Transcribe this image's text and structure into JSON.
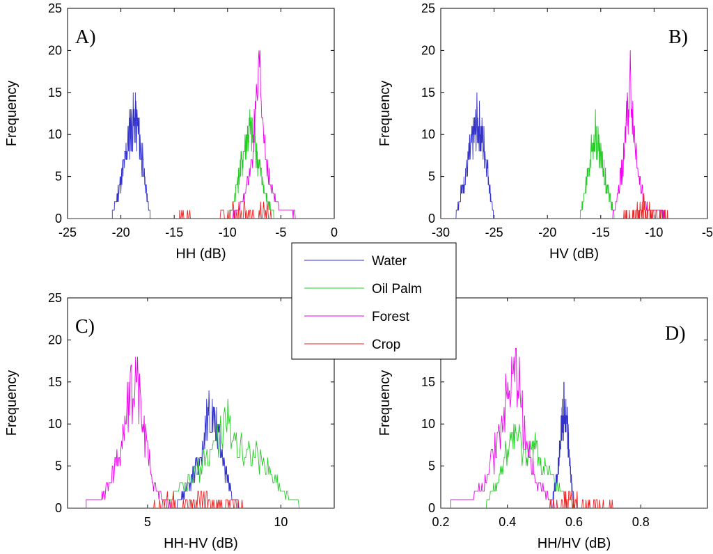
{
  "legend": [
    {
      "name": "Water",
      "color": "#3333cc"
    },
    {
      "name": "Oil Palm",
      "color": "#22cc22"
    },
    {
      "name": "Forest",
      "color": "#ee00ee"
    },
    {
      "name": "Crop",
      "color": "#ee2222"
    }
  ],
  "chart_data": [
    {
      "type": "line",
      "panel": "A)",
      "xlabel": "HH (dB)",
      "ylabel": "Frequency",
      "xlim": [
        -25,
        0
      ],
      "ylim": [
        0,
        25
      ],
      "xticks": [
        "-25",
        "-20",
        "-15",
        "-10",
        "-5",
        "0"
      ],
      "yticks": [
        "0",
        "5",
        "10",
        "15",
        "20",
        "25"
      ],
      "series": [
        {
          "name": "Water",
          "x": [
            -20.8,
            -20.4,
            -20.0,
            -19.6,
            -19.2,
            -18.8,
            -18.4,
            -18.0,
            -17.6,
            -17.2
          ],
          "y": [
            1,
            3,
            6,
            9,
            13,
            15,
            14,
            9,
            4,
            0
          ]
        },
        {
          "name": "Oil Palm",
          "x": [
            -10.0,
            -9.5,
            -9.0,
            -8.5,
            -8.0,
            -7.5,
            -7.0,
            -6.5,
            -6.0,
            -5.5
          ],
          "y": [
            0,
            2,
            6,
            10,
            14,
            12,
            8,
            4,
            2,
            0
          ]
        },
        {
          "name": "Forest",
          "x": [
            -10.0,
            -9.0,
            -8.5,
            -8.0,
            -7.5,
            -7.0,
            -6.5,
            -6.0,
            -5.0,
            -4.0,
            -3.0
          ],
          "y": [
            0,
            1,
            3,
            6,
            13,
            21,
            11,
            5,
            1,
            1,
            0
          ]
        },
        {
          "name": "Crop",
          "x": [
            -14.5,
            -12.0,
            -10.0,
            -9.0,
            -8.0,
            -7.0,
            -6.0,
            -5.0
          ],
          "y": [
            1,
            0,
            1,
            2,
            1,
            2,
            1,
            0
          ]
        }
      ]
    },
    {
      "type": "line",
      "panel": "B)",
      "xlabel": "HV (dB)",
      "ylabel": "Frequency",
      "xlim": [
        -30,
        -5
      ],
      "ylim": [
        0,
        25
      ],
      "xticks": [
        "-30",
        "-25",
        "-20",
        "-15",
        "-10",
        "-5"
      ],
      "yticks": [
        "0",
        "5",
        "10",
        "15",
        "20",
        "25"
      ],
      "series": [
        {
          "name": "Water",
          "x": [
            -28.7,
            -28.2,
            -27.8,
            -27.4,
            -27.0,
            -26.6,
            -26.2,
            -25.8,
            -25.4,
            -25.0
          ],
          "y": [
            0,
            3,
            6,
            9,
            12,
            15,
            13,
            10,
            5,
            0
          ]
        },
        {
          "name": "Oil Palm",
          "x": [
            -17.0,
            -16.5,
            -16.0,
            -15.6,
            -15.2,
            -14.8,
            -14.4,
            -14.0,
            -13.6
          ],
          "y": [
            0,
            4,
            9,
            14,
            11,
            8,
            5,
            2,
            0
          ]
        },
        {
          "name": "Forest",
          "x": [
            -14.0,
            -13.5,
            -13.0,
            -12.6,
            -12.2,
            -11.8,
            -11.4,
            -11.0,
            -10.5,
            -9.5,
            -8.5
          ],
          "y": [
            0,
            3,
            8,
            14,
            21,
            12,
            7,
            3,
            1,
            1,
            0
          ]
        },
        {
          "name": "Crop",
          "x": [
            -13.5,
            -12.0,
            -11.0,
            -10.0,
            -9.0,
            -8.5
          ],
          "y": [
            0,
            1,
            2,
            1,
            1,
            0
          ]
        }
      ]
    },
    {
      "type": "line",
      "panel": "C)",
      "xlabel": "HH-HV (dB)",
      "ylabel": "Frequency",
      "xlim": [
        2,
        12
      ],
      "ylim": [
        0,
        25
      ],
      "xticks": [
        "5",
        "10"
      ],
      "xtick_values": [
        5,
        10
      ],
      "yticks": [
        "0",
        "5",
        "10",
        "15",
        "20",
        "25"
      ],
      "series": [
        {
          "name": "Water",
          "x": [
            6.0,
            6.5,
            7.0,
            7.3,
            7.6,
            7.9,
            8.2,
            8.5
          ],
          "y": [
            0,
            3,
            8,
            15,
            12,
            6,
            2,
            0
          ]
        },
        {
          "name": "Oil Palm",
          "x": [
            5.5,
            6.0,
            6.5,
            7.0,
            7.5,
            8.0,
            8.5,
            9.0,
            9.5,
            10.0,
            10.5,
            11.0
          ],
          "y": [
            0,
            2,
            4,
            6,
            10,
            13,
            9,
            8,
            6,
            3,
            1,
            0
          ]
        },
        {
          "name": "Forest",
          "x": [
            2.7,
            3.2,
            3.6,
            4.0,
            4.3,
            4.6,
            4.9,
            5.2,
            5.6,
            6.2
          ],
          "y": [
            1,
            1,
            4,
            9,
            17,
            21,
            11,
            4,
            1,
            0
          ]
        },
        {
          "name": "Crop",
          "x": [
            5.0,
            5.5,
            6.0,
            6.5,
            7.0,
            7.5,
            8.0,
            9.0
          ],
          "y": [
            0,
            1,
            2,
            1,
            2,
            1,
            1,
            0
          ]
        }
      ]
    },
    {
      "type": "line",
      "panel": "D)",
      "xlabel": "HH/HV (dB)",
      "ylabel": "Frequency",
      "xlim": [
        0.2,
        1.0
      ],
      "ylim": [
        0,
        25
      ],
      "xticks": [
        "0.2",
        "0.4",
        "0.6",
        "0.8"
      ],
      "xtick_values": [
        0.2,
        0.4,
        0.6,
        0.8
      ],
      "yticks": [
        "0",
        "5",
        "10",
        "15",
        "20",
        "25"
      ],
      "series": [
        {
          "name": "Water",
          "x": [
            0.53,
            0.55,
            0.56,
            0.57,
            0.58,
            0.59,
            0.6
          ],
          "y": [
            0,
            5,
            11,
            15,
            12,
            5,
            0
          ]
        },
        {
          "name": "Oil Palm",
          "x": [
            0.33,
            0.36,
            0.39,
            0.42,
            0.45,
            0.48,
            0.51,
            0.54,
            0.58,
            0.62
          ],
          "y": [
            0,
            3,
            7,
            12,
            8,
            9,
            6,
            4,
            1,
            0
          ]
        },
        {
          "name": "Forest",
          "x": [
            0.23,
            0.29,
            0.33,
            0.36,
            0.39,
            0.41,
            0.43,
            0.45,
            0.47,
            0.5,
            0.55
          ],
          "y": [
            1,
            1,
            4,
            8,
            15,
            18,
            21,
            12,
            7,
            3,
            0
          ]
        },
        {
          "name": "Crop",
          "x": [
            0.5,
            0.55,
            0.6,
            0.65,
            0.7,
            0.75
          ],
          "y": [
            0,
            1,
            2,
            1,
            1,
            0
          ]
        }
      ]
    }
  ]
}
